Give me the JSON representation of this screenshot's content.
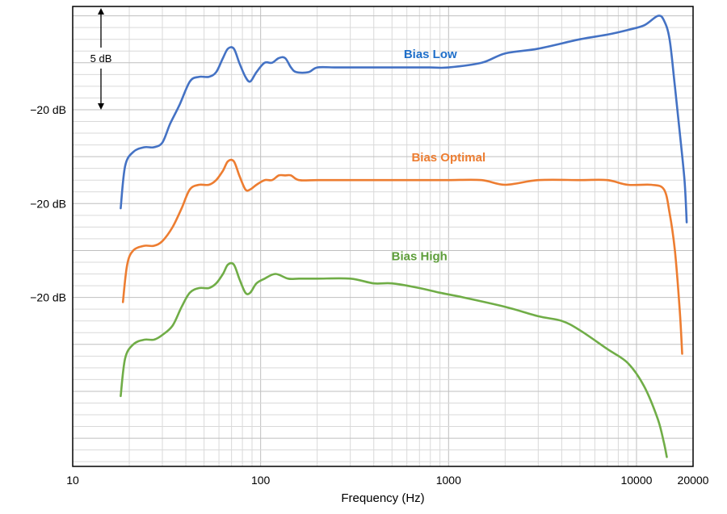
{
  "chart_data": {
    "type": "line",
    "xscale": "log",
    "xlim": [
      10,
      20000
    ],
    "xlabel": "Frequency (Hz)",
    "x_tick_labels": [
      "10",
      "100",
      "1000",
      "10000",
      "20000"
    ],
    "x_ticks": [
      10,
      100,
      1000,
      10000,
      20000
    ],
    "y_tick_labels": [
      "−20 dB",
      "−20 dB",
      "−20 dB"
    ],
    "y_tick_values": [
      -20,
      -40,
      -60
    ],
    "ylim": [
      -96,
      2
    ],
    "scale_annotation": "5 dB",
    "grid": true,
    "series": [
      {
        "name": "Bias Low",
        "color": "#4472C4",
        "points": [
          [
            18,
            -41
          ],
          [
            19,
            -32
          ],
          [
            21,
            -29
          ],
          [
            24,
            -28
          ],
          [
            27,
            -28
          ],
          [
            30,
            -27
          ],
          [
            33,
            -23
          ],
          [
            37,
            -19
          ],
          [
            42,
            -14
          ],
          [
            47,
            -13
          ],
          [
            53,
            -13
          ],
          [
            58,
            -12
          ],
          [
            63,
            -9
          ],
          [
            67,
            -7
          ],
          [
            72,
            -7
          ],
          [
            77,
            -10
          ],
          [
            83,
            -13
          ],
          [
            88,
            -14
          ],
          [
            95,
            -12
          ],
          [
            105,
            -10
          ],
          [
            115,
            -10
          ],
          [
            125,
            -9
          ],
          [
            135,
            -9
          ],
          [
            145,
            -11
          ],
          [
            155,
            -12
          ],
          [
            180,
            -12
          ],
          [
            200,
            -11
          ],
          [
            250,
            -11
          ],
          [
            300,
            -11
          ],
          [
            400,
            -11
          ],
          [
            500,
            -11
          ],
          [
            600,
            -11
          ],
          [
            800,
            -11
          ],
          [
            1000,
            -11
          ],
          [
            1500,
            -10
          ],
          [
            2000,
            -8
          ],
          [
            3000,
            -7
          ],
          [
            5000,
            -5
          ],
          [
            7000,
            -4
          ],
          [
            9000,
            -3
          ],
          [
            11000,
            -2
          ],
          [
            13000,
            0
          ],
          [
            14000,
            -1
          ],
          [
            15000,
            -5
          ],
          [
            16000,
            -15
          ],
          [
            17000,
            -25
          ],
          [
            18000,
            -35
          ],
          [
            18500,
            -44
          ]
        ]
      },
      {
        "name": "Bias Optimal",
        "color": "#ED7D31",
        "points": [
          [
            18.5,
            -61
          ],
          [
            19.5,
            -53
          ],
          [
            21,
            -50
          ],
          [
            24,
            -49
          ],
          [
            27,
            -49
          ],
          [
            30,
            -48
          ],
          [
            34,
            -45
          ],
          [
            38,
            -41
          ],
          [
            42,
            -37
          ],
          [
            47,
            -36
          ],
          [
            53,
            -36
          ],
          [
            58,
            -35
          ],
          [
            63,
            -33
          ],
          [
            67,
            -31
          ],
          [
            72,
            -31
          ],
          [
            77,
            -34
          ],
          [
            83,
            -37
          ],
          [
            88,
            -37
          ],
          [
            95,
            -36
          ],
          [
            105,
            -35
          ],
          [
            115,
            -35
          ],
          [
            125,
            -34
          ],
          [
            135,
            -34
          ],
          [
            145,
            -34
          ],
          [
            160,
            -35
          ],
          [
            200,
            -35
          ],
          [
            300,
            -35
          ],
          [
            500,
            -35
          ],
          [
            700,
            -35
          ],
          [
            1000,
            -35
          ],
          [
            1500,
            -35
          ],
          [
            2000,
            -36
          ],
          [
            3000,
            -35
          ],
          [
            5000,
            -35
          ],
          [
            7000,
            -35
          ],
          [
            9000,
            -36
          ],
          [
            12000,
            -36
          ],
          [
            14000,
            -37
          ],
          [
            15000,
            -42
          ],
          [
            16000,
            -50
          ],
          [
            17000,
            -63
          ],
          [
            17500,
            -72
          ]
        ]
      },
      {
        "name": "Bias High",
        "color": "#70AD47",
        "points": [
          [
            18,
            -81
          ],
          [
            19,
            -73
          ],
          [
            21,
            -70
          ],
          [
            24,
            -69
          ],
          [
            27,
            -69
          ],
          [
            30,
            -68
          ],
          [
            34,
            -66
          ],
          [
            38,
            -62
          ],
          [
            42,
            -59
          ],
          [
            47,
            -58
          ],
          [
            53,
            -58
          ],
          [
            58,
            -57
          ],
          [
            63,
            -55
          ],
          [
            67,
            -53
          ],
          [
            72,
            -53
          ],
          [
            77,
            -56
          ],
          [
            83,
            -59
          ],
          [
            88,
            -59
          ],
          [
            95,
            -57
          ],
          [
            105,
            -56
          ],
          [
            120,
            -55
          ],
          [
            140,
            -56
          ],
          [
            160,
            -56
          ],
          [
            200,
            -56
          ],
          [
            300,
            -56
          ],
          [
            400,
            -57
          ],
          [
            500,
            -57
          ],
          [
            700,
            -58
          ],
          [
            900,
            -59
          ],
          [
            1200,
            -60
          ],
          [
            2000,
            -62
          ],
          [
            3000,
            -64
          ],
          [
            4000,
            -65
          ],
          [
            5000,
            -67
          ],
          [
            7000,
            -71
          ],
          [
            9000,
            -74
          ],
          [
            11000,
            -79
          ],
          [
            13000,
            -86
          ],
          [
            14000,
            -91
          ],
          [
            14500,
            -94
          ]
        ]
      }
    ],
    "annotations": [
      {
        "text": "Bias Low",
        "color": "#1F6FC9",
        "x": 800,
        "y": -8
      },
      {
        "text": "Bias Optimal",
        "color": "#ED7D31",
        "x": 1000,
        "y": -30
      },
      {
        "text": "Bias High",
        "color": "#5E9E3B",
        "x": 700,
        "y": -51
      }
    ]
  }
}
